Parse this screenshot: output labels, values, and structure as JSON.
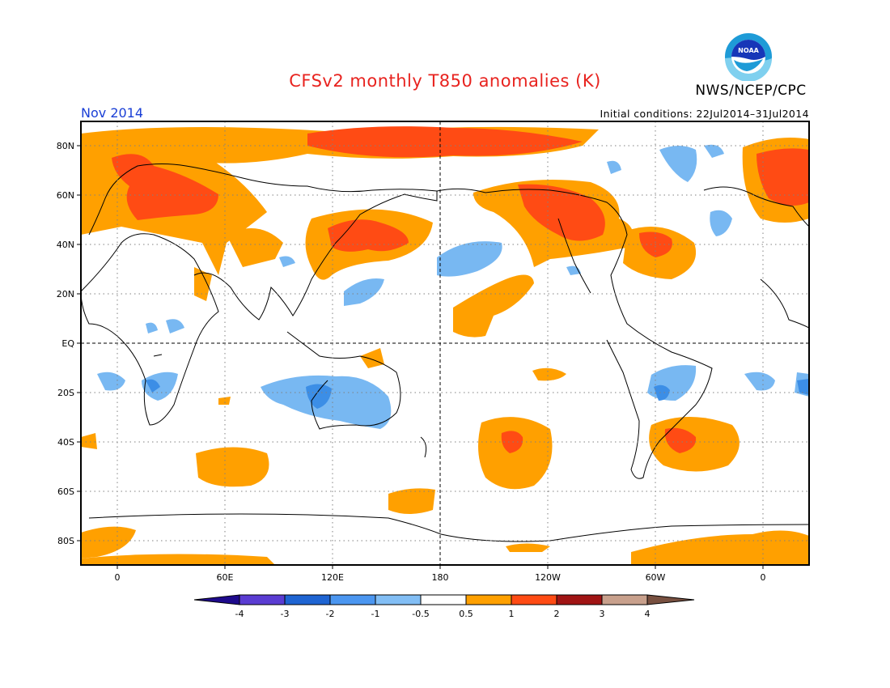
{
  "title": "CFSv2 monthly T850 anomalies (K)",
  "agency": "NWS/NCEP/CPC",
  "logo_text": "NOAA",
  "valid_month": "Nov 2014",
  "initial_conditions": "Initial conditions: 22Jul2014–31Jul2014",
  "map": {
    "projection": "cylindrical equidistant, centered on 180",
    "grid": "dotted every 60 deg longitude and 20 deg latitude",
    "lat_labels": [
      "80N",
      "60N",
      "40N",
      "20N",
      "EQ",
      "20S",
      "40S",
      "60S",
      "80S"
    ],
    "lon_labels": [
      "0",
      "60E",
      "120E",
      "180",
      "120W",
      "60W",
      "0"
    ]
  },
  "colorbar": {
    "labels": [
      "-4",
      "-3",
      "-2",
      "-1",
      "-0.5",
      "0.5",
      "1",
      "2",
      "3",
      "4"
    ],
    "colors": [
      "#1e0a8c",
      "#5a3cd2",
      "#1e64d2",
      "#4b96f0",
      "#82bef5",
      "#ffffff",
      "#ffa000",
      "#ff4b14",
      "#a01414",
      "#c8a08c",
      "#785040"
    ]
  },
  "anomaly_colors": {
    "blue_light": "#78b8f2",
    "blue_mid": "#3c8ee6",
    "orange": "#ffa000",
    "red": "#ff4b14"
  }
}
